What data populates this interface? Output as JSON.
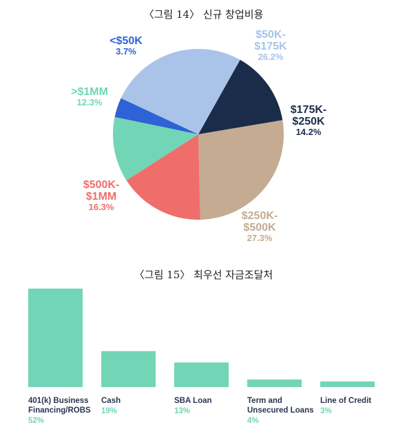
{
  "captions": {
    "pie": "〈그림 14〉 신규 창업비용",
    "bar": "〈그림 15〉 최우선 자금조달처"
  },
  "chart_data": [
    {
      "type": "pie",
      "title": "〈그림 14〉 신규 창업비용",
      "slices": [
        {
          "label_lines": [
            "$50K-",
            "$175K"
          ],
          "value": 26.2,
          "value_label": "26.2%",
          "color": "#a9c4e8",
          "label_color": "#a9c4e8"
        },
        {
          "label_lines": [
            "$175K-",
            "$250K"
          ],
          "value": 14.2,
          "value_label": "14.2%",
          "color": "#1b2c4b",
          "label_color": "#1b2c4b"
        },
        {
          "label_lines": [
            "$250K-",
            "$500K"
          ],
          "value": 27.3,
          "value_label": "27.3%",
          "color": "#c4ab92",
          "label_color": "#c4ab92"
        },
        {
          "label_lines": [
            "$500K-",
            "$1MM"
          ],
          "value": 16.3,
          "value_label": "16.3%",
          "color": "#ef6e6b",
          "label_color": "#ef6e6b"
        },
        {
          "label_lines": [
            ">$1MM"
          ],
          "value": 12.3,
          "value_label": "12.3%",
          "color": "#72d5b6",
          "label_color": "#72d5b6"
        },
        {
          "label_lines": [
            "<$50K"
          ],
          "value": 3.7,
          "value_label": "3.7%",
          "color": "#2e62d6",
          "label_color": "#2e62d6"
        }
      ]
    },
    {
      "type": "bar",
      "title": "〈그림 15〉 최우선 자금조달처",
      "bar_color": "#72d5b6",
      "categories": [
        {
          "label_lines": [
            "401(k) Business",
            "Financing/ROBS"
          ],
          "value": 52,
          "value_label": "52%"
        },
        {
          "label_lines": [
            "Cash"
          ],
          "value": 19,
          "value_label": "19%"
        },
        {
          "label_lines": [
            "SBA Loan"
          ],
          "value": 13,
          "value_label": "13%"
        },
        {
          "label_lines": [
            "Term and",
            "Unsecured Loans"
          ],
          "value": 4,
          "value_label": "4%"
        },
        {
          "label_lines": [
            "Line of Credit"
          ],
          "value": 3,
          "value_label": "3%"
        }
      ],
      "ylim": [
        0,
        52
      ]
    }
  ]
}
